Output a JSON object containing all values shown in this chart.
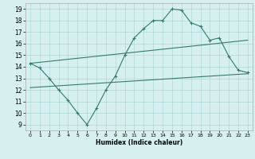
{
  "line1_x": [
    0,
    1,
    2,
    3,
    4,
    5,
    6,
    7,
    8,
    9,
    10,
    11,
    12,
    13,
    14,
    15,
    16,
    17,
    18,
    19,
    20,
    21,
    22,
    23
  ],
  "line1_y": [
    14.3,
    13.9,
    13.0,
    12.0,
    11.1,
    10.0,
    9.0,
    10.4,
    12.0,
    13.2,
    15.0,
    16.5,
    17.3,
    18.0,
    18.0,
    19.0,
    18.9,
    17.8,
    17.5,
    16.3,
    16.5,
    14.9,
    13.7,
    13.5
  ],
  "line2_x": [
    0,
    23
  ],
  "line2_y": [
    14.3,
    16.3
  ],
  "line3_x": [
    0,
    23
  ],
  "line3_y": [
    12.2,
    13.4
  ],
  "color": "#2e7d6e",
  "bg_color": "#d6f0f0",
  "grid_color": "#b0d8d8",
  "xlabel": "Humidex (Indice chaleur)",
  "xlim": [
    -0.5,
    23.5
  ],
  "ylim": [
    8.5,
    19.5
  ],
  "yticks": [
    9,
    10,
    11,
    12,
    13,
    14,
    15,
    16,
    17,
    18,
    19
  ],
  "xticks": [
    0,
    1,
    2,
    3,
    4,
    5,
    6,
    7,
    8,
    9,
    10,
    11,
    12,
    13,
    14,
    15,
    16,
    17,
    18,
    19,
    20,
    21,
    22,
    23
  ],
  "marker": "+",
  "linewidth": 0.8,
  "markersize": 3,
  "markeredgewidth": 0.8
}
